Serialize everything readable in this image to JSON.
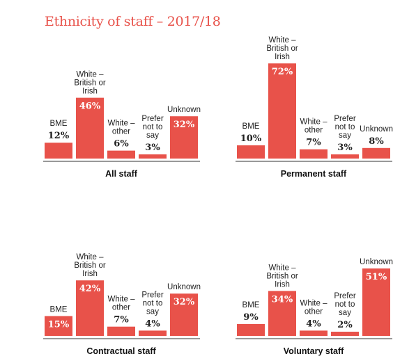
{
  "title": "Ethnicity of staff – 2017/18",
  "colors": {
    "bar": "#e8524a",
    "title": "#e8524a",
    "axis": "#333333",
    "text": "#222222"
  },
  "chart_data": [
    {
      "type": "bar",
      "title": "All staff",
      "categories": [
        [
          "BME"
        ],
        [
          "White –",
          "British or",
          "Irish"
        ],
        [
          "White –",
          "other"
        ],
        [
          "Prefer",
          "not to",
          "say"
        ],
        [
          "Unknown"
        ]
      ],
      "values": [
        12,
        46,
        6,
        3,
        32
      ],
      "value_labels": [
        "12%",
        "46%",
        "6%",
        "3%",
        "32%"
      ]
    },
    {
      "type": "bar",
      "title": "Permanent staff",
      "categories": [
        [
          "BME"
        ],
        [
          "White –",
          "British or",
          "Irish"
        ],
        [
          "White –",
          "other"
        ],
        [
          "Prefer",
          "not to",
          "say"
        ],
        [
          "Unknown"
        ]
      ],
      "values": [
        10,
        72,
        7,
        3,
        8
      ],
      "value_labels": [
        "10%",
        "72%",
        "7%",
        "3%",
        "8%"
      ]
    },
    {
      "type": "bar",
      "title": "Contractual staff",
      "categories": [
        [
          "BME"
        ],
        [
          "White –",
          "British or",
          "Irish"
        ],
        [
          "White –",
          "other"
        ],
        [
          "Prefer",
          "not to",
          "say"
        ],
        [
          "Unknown"
        ]
      ],
      "values": [
        15,
        42,
        7,
        4,
        32
      ],
      "value_labels": [
        "15%",
        "42%",
        "7%",
        "4%",
        "32%"
      ]
    },
    {
      "type": "bar",
      "title": "Voluntary staff",
      "categories": [
        [
          "BME"
        ],
        [
          "White –",
          "British or",
          "Irish"
        ],
        [
          "White –",
          "other"
        ],
        [
          "Prefer",
          "not to",
          "say"
        ],
        [
          "Unknown"
        ]
      ],
      "values": [
        9,
        34,
        4,
        2,
        51
      ],
      "value_labels": [
        "9%",
        "34%",
        "4%",
        "2%",
        "51%"
      ]
    }
  ]
}
